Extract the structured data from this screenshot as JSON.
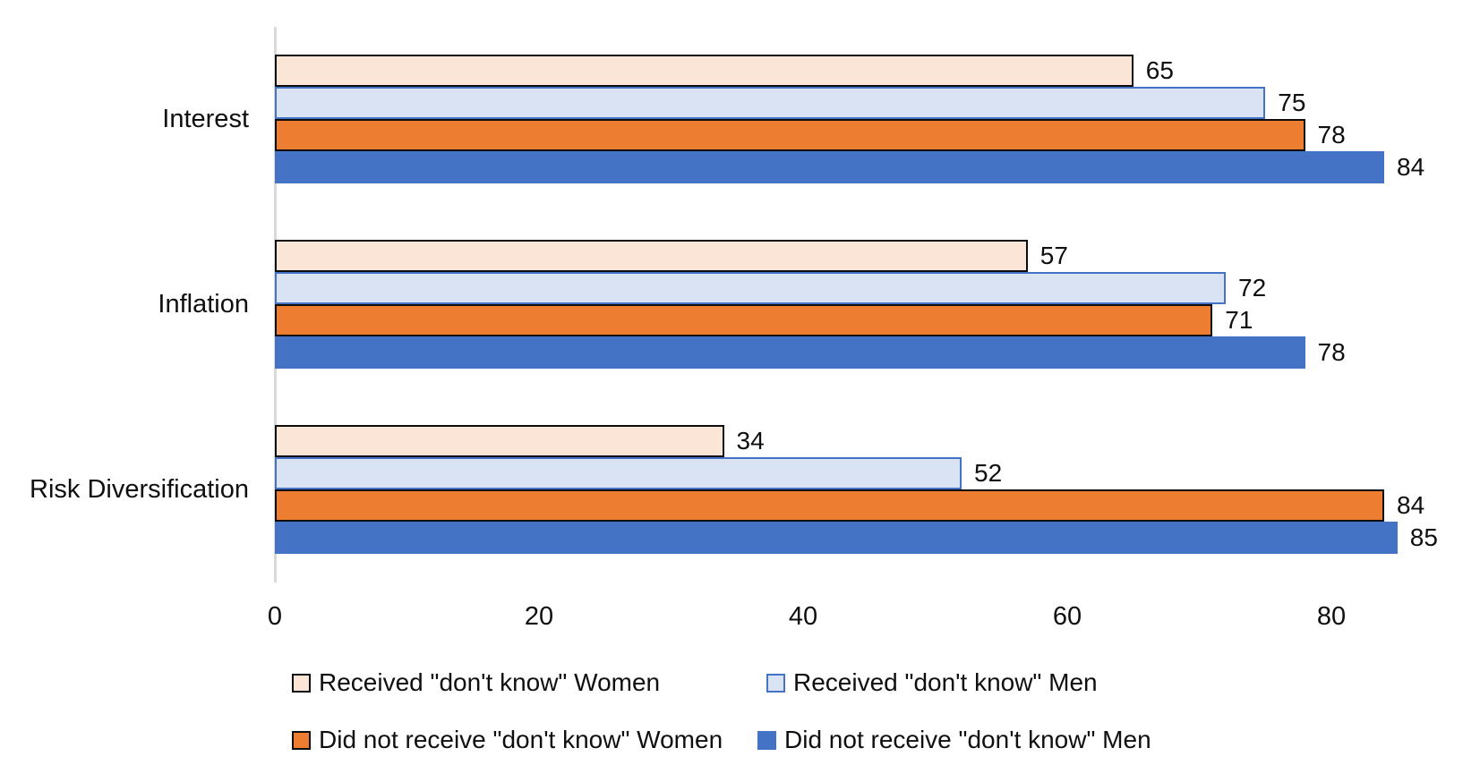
{
  "chart_data": {
    "type": "bar",
    "orientation": "horizontal",
    "title": "",
    "xlabel": "",
    "ylabel": "",
    "categories": [
      "Interest",
      "Inflation",
      "Risk Diversification"
    ],
    "series": [
      {
        "name": "Received \"don't know\" Women",
        "values": [
          65,
          57,
          34
        ],
        "fill": "#FBE5D6",
        "border": "#0D0D0D"
      },
      {
        "name": "Received \"don't know\" Men",
        "values": [
          75,
          72,
          52
        ],
        "fill": "#DAE3F3",
        "border": "#4472C4"
      },
      {
        "name": "Did not receive \"don't know\" Women",
        "values": [
          78,
          71,
          84
        ],
        "fill": "#ED7D31",
        "border": "#0D0D0D"
      },
      {
        "name": "Did not receive \"don't know\" Men",
        "values": [
          84,
          78,
          85
        ],
        "fill": "#4472C4",
        "border": null
      }
    ],
    "x_axis": {
      "ticks": [
        0,
        20,
        40,
        60,
        80
      ],
      "min": 0,
      "max": 85
    },
    "grid": false,
    "data_labels": true,
    "legend_position": "bottom",
    "axis_line_color": "#D9D9D9",
    "text_color": "#0F0F0F",
    "background_color": "#FFFFFF"
  }
}
